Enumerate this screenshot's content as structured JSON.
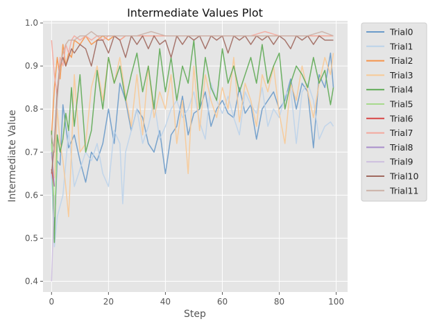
{
  "chart_data": {
    "type": "line",
    "title": "Intermediate Values Plot",
    "xlabel": "Step",
    "ylabel": "Intermediate Value",
    "xlim": [
      -3,
      104
    ],
    "ylim": [
      0.375,
      1.005
    ],
    "xticks": [
      0,
      20,
      40,
      60,
      80,
      100
    ],
    "yticks": [
      0.4,
      0.5,
      0.6,
      0.7,
      0.8,
      0.9,
      1.0
    ],
    "xtick_labels": [
      "0",
      "20",
      "40",
      "60",
      "80",
      "100"
    ],
    "ytick_labels": [
      "0.4",
      "0.5",
      "0.6",
      "0.7",
      "0.8",
      "0.9",
      "1.0"
    ],
    "grid": true,
    "legend_position": "outside-right",
    "series": [
      {
        "name": "Trial0",
        "color": "#6a9ac9",
        "x": [
          0,
          1,
          2,
          3,
          4,
          5,
          6,
          8,
          10,
          12,
          14,
          16,
          18,
          20,
          22,
          24,
          26,
          28,
          30,
          32,
          34,
          36,
          38,
          40,
          42,
          44,
          46,
          48,
          50,
          52,
          54,
          56,
          58,
          60,
          62,
          64,
          66,
          68,
          70,
          72,
          74,
          76,
          78,
          80,
          82,
          84,
          86,
          88,
          90,
          92,
          94,
          96,
          98,
          99
        ],
        "y": [
          0.65,
          0.52,
          0.68,
          0.67,
          0.81,
          0.76,
          0.71,
          0.74,
          0.68,
          0.63,
          0.7,
          0.68,
          0.72,
          0.8,
          0.72,
          0.86,
          0.82,
          0.75,
          0.8,
          0.78,
          0.72,
          0.7,
          0.75,
          0.65,
          0.74,
          0.76,
          0.83,
          0.74,
          0.79,
          0.8,
          0.84,
          0.76,
          0.8,
          0.82,
          0.79,
          0.78,
          0.85,
          0.79,
          0.81,
          0.73,
          0.8,
          0.82,
          0.84,
          0.8,
          0.82,
          0.87,
          0.8,
          0.86,
          0.84,
          0.71,
          0.88,
          0.85,
          0.93,
          0.85
        ]
      },
      {
        "name": "Trial1",
        "color": "#bcd3ea",
        "x": [
          0,
          1,
          2,
          4,
          6,
          8,
          10,
          12,
          14,
          16,
          18,
          20,
          22,
          24,
          25,
          26,
          28,
          30,
          32,
          34,
          36,
          38,
          40,
          42,
          44,
          46,
          48,
          50,
          52,
          54,
          56,
          58,
          60,
          62,
          64,
          66,
          68,
          70,
          72,
          74,
          76,
          78,
          80,
          82,
          84,
          86,
          88,
          90,
          92,
          94,
          96,
          98,
          99
        ],
        "y": [
          0.65,
          0.48,
          0.55,
          0.6,
          0.75,
          0.62,
          0.66,
          0.7,
          0.68,
          0.72,
          0.65,
          0.62,
          0.75,
          0.72,
          0.58,
          0.7,
          0.75,
          0.8,
          0.72,
          0.76,
          0.82,
          0.73,
          0.76,
          0.8,
          0.82,
          0.78,
          0.8,
          0.84,
          0.77,
          0.73,
          0.86,
          0.82,
          0.79,
          0.83,
          0.78,
          0.74,
          0.84,
          0.81,
          0.79,
          0.85,
          0.76,
          0.8,
          0.78,
          0.83,
          0.85,
          0.72,
          0.84,
          0.86,
          0.82,
          0.73,
          0.76,
          0.77,
          0.76
        ]
      },
      {
        "name": "Trial2",
        "color": "#f5934a",
        "x": [
          0,
          1,
          2,
          3,
          4,
          5,
          6,
          7,
          8,
          10,
          12,
          14,
          16,
          18,
          20,
          22,
          24,
          26,
          28,
          30,
          35,
          40,
          45,
          50,
          60,
          70,
          80,
          90,
          99
        ],
        "y": [
          0.74,
          0.85,
          0.92,
          0.87,
          0.95,
          0.9,
          0.93,
          0.92,
          0.96,
          0.95,
          0.97,
          0.95,
          0.96,
          0.97,
          0.96,
          0.97,
          0.96,
          0.97,
          0.97,
          0.97,
          0.97,
          0.97,
          0.97,
          0.97,
          0.97,
          0.97,
          0.97,
          0.97,
          0.97
        ]
      },
      {
        "name": "Trial3",
        "color": "#f8c995",
        "x": [
          0,
          1,
          2,
          3,
          4,
          5,
          6,
          7,
          8,
          10,
          12,
          14,
          16,
          18,
          20,
          22,
          24,
          26,
          28,
          30,
          32,
          34,
          36,
          38,
          40,
          42,
          44,
          46,
          48,
          50,
          52,
          54,
          56,
          58,
          60,
          62,
          64,
          66,
          68,
          70,
          72,
          74,
          76,
          78,
          80,
          82,
          84,
          86,
          88,
          90,
          92,
          94,
          96,
          98,
          99
        ],
        "y": [
          0.69,
          0.64,
          0.8,
          0.72,
          0.68,
          0.62,
          0.55,
          0.7,
          0.88,
          0.7,
          0.72,
          0.85,
          0.9,
          0.82,
          0.92,
          0.86,
          0.92,
          0.83,
          0.76,
          0.88,
          0.74,
          0.9,
          0.78,
          0.84,
          0.8,
          0.88,
          0.72,
          0.82,
          0.65,
          0.9,
          0.75,
          0.88,
          0.82,
          0.78,
          0.85,
          0.8,
          0.92,
          0.77,
          0.86,
          0.82,
          0.76,
          0.88,
          0.84,
          0.9,
          0.79,
          0.72,
          0.86,
          0.82,
          0.9,
          0.84,
          0.78,
          0.86,
          0.92,
          0.88,
          0.93
        ]
      },
      {
        "name": "Trial4",
        "color": "#5eaa54",
        "x": [
          0,
          1,
          2,
          3,
          4,
          5,
          6,
          7,
          8,
          10,
          12,
          14,
          16,
          18,
          20,
          22,
          24,
          26,
          28,
          30,
          32,
          34,
          36,
          38,
          40,
          42,
          44,
          46,
          48,
          50,
          52,
          54,
          56,
          58,
          60,
          62,
          64,
          66,
          68,
          70,
          72,
          74,
          76,
          78,
          80,
          82,
          84,
          86,
          88,
          90,
          92,
          94,
          96,
          98,
          99
        ],
        "y": [
          0.75,
          0.49,
          0.74,
          0.7,
          0.73,
          0.79,
          0.75,
          0.85,
          0.76,
          0.88,
          0.7,
          0.75,
          0.89,
          0.8,
          0.92,
          0.86,
          0.9,
          0.82,
          0.88,
          0.93,
          0.84,
          0.9,
          0.8,
          0.94,
          0.84,
          0.92,
          0.82,
          0.9,
          0.86,
          0.96,
          0.8,
          0.92,
          0.85,
          0.82,
          0.94,
          0.86,
          0.9,
          0.84,
          0.88,
          0.92,
          0.86,
          0.95,
          0.86,
          0.9,
          0.93,
          0.8,
          0.86,
          0.9,
          0.88,
          0.85,
          0.92,
          0.86,
          0.89,
          0.81,
          0.85
        ]
      },
      {
        "name": "Trial5",
        "color": "#a6da8c",
        "x": [
          0,
          1,
          2
        ],
        "y": [
          0.72,
          0.55,
          0.7
        ]
      },
      {
        "name": "Trial6",
        "color": "#d84545",
        "x": [
          0,
          1
        ],
        "y": [
          0.66,
          0.62
        ]
      },
      {
        "name": "Trial7",
        "color": "#f4a79c",
        "x": [
          0,
          1,
          2,
          3,
          4,
          5,
          6,
          7,
          8,
          10,
          12,
          14,
          16,
          18,
          20,
          22,
          24,
          26,
          28,
          30,
          32,
          34,
          36,
          38,
          40,
          45,
          50,
          55,
          60,
          65,
          70,
          75,
          80,
          85,
          90,
          95,
          99
        ],
        "y": [
          0.96,
          0.88,
          0.83,
          0.92,
          0.9,
          0.95,
          0.93,
          0.96,
          0.97,
          0.96,
          0.97,
          0.96,
          0.97,
          0.96,
          0.97,
          0.97,
          0.96,
          0.97,
          0.97,
          0.97,
          0.97,
          0.97,
          0.97,
          0.97,
          0.97,
          0.97,
          0.97,
          0.97,
          0.97,
          0.97,
          0.97,
          0.98,
          0.97,
          0.97,
          0.97,
          0.97,
          0.97
        ]
      },
      {
        "name": "Trial8",
        "color": "#a98ecb",
        "x": [
          0,
          1
        ],
        "y": [
          0.7,
          0.62
        ]
      },
      {
        "name": "Trial9",
        "color": "#cdbedf",
        "x": [
          0,
          1
        ],
        "y": [
          0.4,
          0.6
        ]
      },
      {
        "name": "Trial10",
        "color": "#a0695f",
        "x": [
          0,
          1,
          2,
          3,
          4,
          5,
          6,
          7,
          8,
          10,
          12,
          14,
          16,
          18,
          20,
          22,
          24,
          26,
          28,
          30,
          32,
          34,
          36,
          38,
          40,
          42,
          44,
          46,
          48,
          50,
          52,
          54,
          56,
          58,
          60,
          62,
          64,
          66,
          68,
          70,
          72,
          74,
          76,
          78,
          80,
          82,
          84,
          86,
          88,
          90,
          92,
          94,
          96,
          98,
          99
        ],
        "y": [
          0.65,
          0.72,
          0.84,
          0.9,
          0.92,
          0.9,
          0.92,
          0.94,
          0.93,
          0.95,
          0.94,
          0.9,
          0.96,
          0.96,
          0.93,
          0.97,
          0.96,
          0.92,
          0.97,
          0.95,
          0.97,
          0.94,
          0.97,
          0.95,
          0.96,
          0.92,
          0.97,
          0.95,
          0.97,
          0.96,
          0.97,
          0.94,
          0.97,
          0.96,
          0.97,
          0.93,
          0.97,
          0.96,
          0.97,
          0.95,
          0.97,
          0.96,
          0.97,
          0.95,
          0.97,
          0.96,
          0.94,
          0.97,
          0.96,
          0.97,
          0.95,
          0.97,
          0.96,
          0.96,
          0.96
        ]
      },
      {
        "name": "Trial11",
        "color": "#cbb0a6",
        "x": [
          0,
          1,
          2,
          3,
          4,
          5,
          6,
          8,
          10,
          12,
          14,
          16,
          18,
          20,
          25,
          30,
          35,
          40,
          45,
          50,
          55,
          60,
          65,
          70,
          75,
          80,
          85,
          90,
          95,
          99
        ],
        "y": [
          0.74,
          0.7,
          0.82,
          0.9,
          0.93,
          0.95,
          0.96,
          0.96,
          0.97,
          0.97,
          0.98,
          0.97,
          0.97,
          0.97,
          0.97,
          0.97,
          0.98,
          0.97,
          0.97,
          0.97,
          0.97,
          0.97,
          0.97,
          0.97,
          0.97,
          0.97,
          0.97,
          0.97,
          0.98,
          0.97
        ]
      }
    ]
  }
}
